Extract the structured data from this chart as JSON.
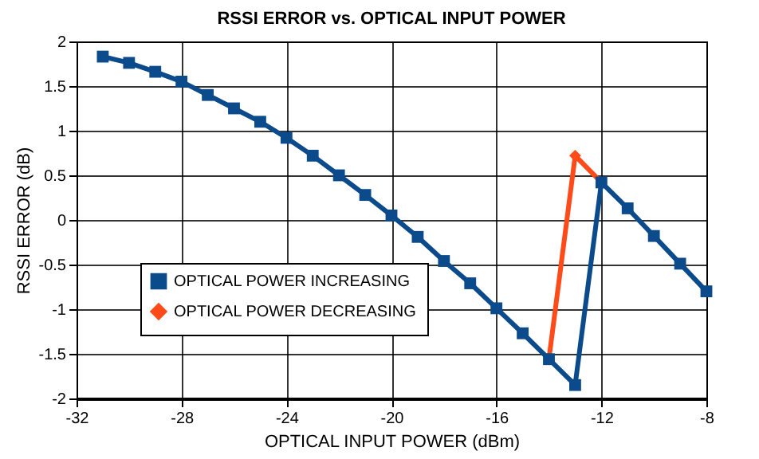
{
  "chart_data": {
    "type": "line",
    "title": "RSSI ERROR vs. OPTICAL INPUT POWER",
    "xlabel": "OPTICAL INPUT POWER (dBm)",
    "ylabel": "RSSI ERROR (dB)",
    "series": [
      {
        "name": "OPTICAL POWER INCREASING",
        "color": "#0b4a8b",
        "marker": "square",
        "x": [
          -31,
          -30,
          -29,
          -28,
          -27,
          -26,
          -25,
          -24,
          -23,
          -22,
          -21,
          -20,
          -19,
          -18,
          -17,
          -16,
          -15,
          -14,
          -13,
          -12,
          -11,
          -10,
          -9,
          -8
        ],
        "values": [
          1.83,
          1.76,
          1.66,
          1.55,
          1.4,
          1.25,
          1.1,
          0.92,
          0.72,
          0.5,
          0.28,
          0.05,
          -0.19,
          -0.46,
          -0.71,
          -0.99,
          -1.27,
          -1.56,
          -1.85,
          0.42,
          0.13,
          -0.18,
          -0.49,
          -0.8
        ]
      },
      {
        "name": "OPTICAL POWER DECREASING",
        "color": "#ff4a1a",
        "marker": "diamond",
        "x": [
          -14,
          -13,
          -12
        ],
        "values": [
          -1.56,
          0.72,
          0.42
        ]
      }
    ],
    "xlim": [
      -32,
      -8
    ],
    "xticks": [
      -32,
      -28,
      -24,
      -20,
      -16,
      -12,
      -8
    ],
    "ylim": [
      -2,
      2
    ],
    "yticks": [
      -2,
      -1.5,
      -1,
      -0.5,
      0,
      0.5,
      1,
      1.5,
      2
    ],
    "grid": true,
    "legend": "bottom left",
    "line_style": "solid"
  }
}
